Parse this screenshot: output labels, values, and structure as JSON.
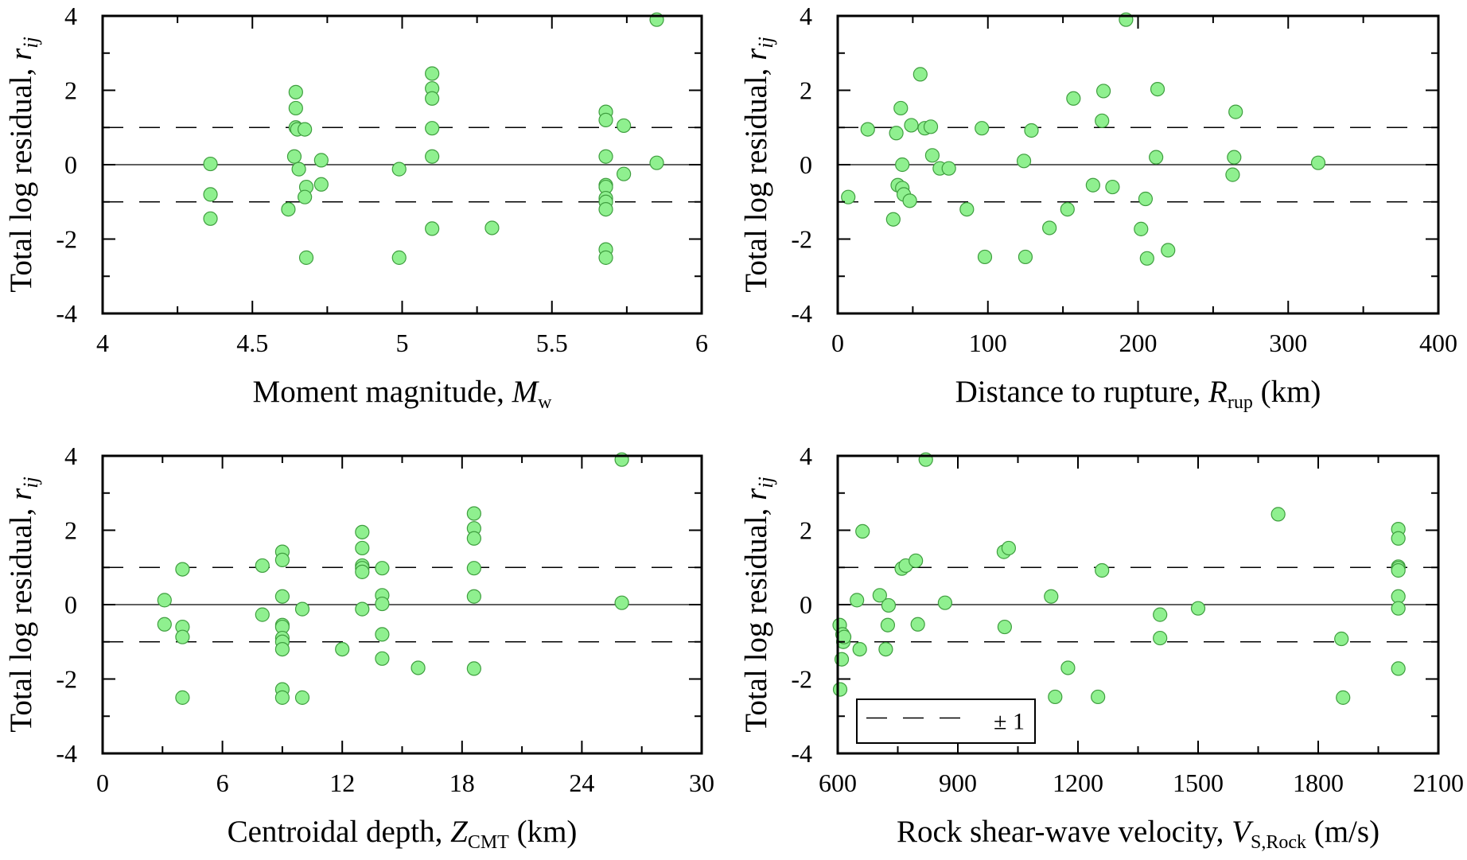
{
  "chart_data": [
    {
      "type": "scatter",
      "xlabel": "Moment magnitude, M_w",
      "xlabel_parts": {
        "text": "Moment magnitude, ",
        "var": "M",
        "sub": "w",
        "tail": ""
      },
      "ylabel": "Total log residual, r_ij",
      "ylabel_parts": {
        "text": "Total log residual, ",
        "var": "r",
        "sub": "ij"
      },
      "xlim": [
        4,
        6
      ],
      "ylim": [
        -4,
        4
      ],
      "xticks": [
        4,
        4.5,
        5,
        5.5,
        6
      ],
      "xtick_labels": [
        "4",
        "4.5",
        "5",
        "5.5",
        "6"
      ],
      "yticks": [
        -4,
        -2,
        0,
        2,
        4
      ],
      "ytick_labels": [
        "-4",
        "-2",
        "0",
        "2",
        "4"
      ],
      "xminor": [
        4.25,
        4.75,
        5.25,
        5.75
      ],
      "yminor": [
        -3,
        -1,
        1,
        3
      ],
      "reference_lines": [
        {
          "y": 0,
          "style": "solid"
        },
        {
          "y": 1,
          "style": "dashed"
        },
        {
          "y": -1,
          "style": "dashed"
        }
      ],
      "points": [
        [
          4.36,
          0.02
        ],
        [
          4.36,
          -0.8
        ],
        [
          4.36,
          -1.45
        ],
        [
          4.62,
          -1.2
        ],
        [
          4.64,
          0.22
        ],
        [
          4.645,
          1.95
        ],
        [
          4.645,
          1.52
        ],
        [
          4.645,
          1.0
        ],
        [
          4.65,
          0.95
        ],
        [
          4.655,
          -0.12
        ],
        [
          4.675,
          0.95
        ],
        [
          4.68,
          -0.6
        ],
        [
          4.675,
          -0.87
        ],
        [
          4.68,
          -2.5
        ],
        [
          4.73,
          0.12
        ],
        [
          4.73,
          -0.53
        ],
        [
          4.99,
          -0.12
        ],
        [
          4.99,
          -2.5
        ],
        [
          5.1,
          2.45
        ],
        [
          5.1,
          2.05
        ],
        [
          5.1,
          1.78
        ],
        [
          5.1,
          0.98
        ],
        [
          5.1,
          0.22
        ],
        [
          5.1,
          -1.72
        ],
        [
          5.3,
          -1.7
        ],
        [
          5.68,
          1.42
        ],
        [
          5.68,
          1.2
        ],
        [
          5.68,
          0.22
        ],
        [
          5.68,
          -0.55
        ],
        [
          5.68,
          -0.6
        ],
        [
          5.68,
          -0.9
        ],
        [
          5.68,
          -1.0
        ],
        [
          5.68,
          -1.2
        ],
        [
          5.68,
          -2.28
        ],
        [
          5.68,
          -2.5
        ],
        [
          5.74,
          1.05
        ],
        [
          5.74,
          -0.25
        ],
        [
          5.85,
          3.9
        ],
        [
          5.85,
          0.05
        ]
      ]
    },
    {
      "type": "scatter",
      "xlabel": "Distance to rupture, R_rup (km)",
      "xlabel_parts": {
        "text": "Distance to rupture, ",
        "var": "R",
        "sub": "rup",
        "tail": " (km)"
      },
      "ylabel": "Total log residual, r_ij",
      "ylabel_parts": {
        "text": "Total log residual, ",
        "var": "r",
        "sub": "ij"
      },
      "xlim": [
        0,
        400
      ],
      "ylim": [
        -4,
        4
      ],
      "xticks": [
        0,
        100,
        200,
        300,
        400
      ],
      "xtick_labels": [
        "0",
        "100",
        "200",
        "300",
        "400"
      ],
      "yticks": [
        -4,
        -2,
        0,
        2,
        4
      ],
      "ytick_labels": [
        "-4",
        "-2",
        "0",
        "2",
        "4"
      ],
      "xminor": [
        50,
        150,
        250,
        350
      ],
      "yminor": [
        -3,
        -1,
        1,
        3
      ],
      "reference_lines": [
        {
          "y": 0,
          "style": "solid"
        },
        {
          "y": 1,
          "style": "dashed"
        },
        {
          "y": -1,
          "style": "dashed"
        }
      ],
      "points": [
        [
          7,
          -0.87
        ],
        [
          20,
          0.95
        ],
        [
          37,
          -1.47
        ],
        [
          39,
          0.85
        ],
        [
          40,
          -0.55
        ],
        [
          42,
          1.52
        ],
        [
          43,
          -0.63
        ],
        [
          43,
          0.0
        ],
        [
          44,
          -0.8
        ],
        [
          48,
          -0.97
        ],
        [
          49,
          1.06
        ],
        [
          55,
          2.43
        ],
        [
          58,
          0.98
        ],
        [
          62,
          1.02
        ],
        [
          63,
          0.25
        ],
        [
          68,
          -0.1
        ],
        [
          74,
          -0.1
        ],
        [
          86,
          -1.2
        ],
        [
          96,
          0.98
        ],
        [
          98,
          -2.48
        ],
        [
          124,
          0.1
        ],
        [
          125,
          -2.48
        ],
        [
          129,
          0.92
        ],
        [
          141,
          -1.7
        ],
        [
          153,
          -1.2
        ],
        [
          157,
          1.78
        ],
        [
          170,
          -0.55
        ],
        [
          176,
          1.18
        ],
        [
          177,
          1.98
        ],
        [
          183,
          -0.6
        ],
        [
          192,
          3.9
        ],
        [
          202,
          -1.73
        ],
        [
          205,
          -0.92
        ],
        [
          206,
          -2.52
        ],
        [
          212,
          0.2
        ],
        [
          213,
          2.03
        ],
        [
          220,
          -2.3
        ],
        [
          263,
          -0.27
        ],
        [
          264,
          0.2
        ],
        [
          265,
          1.42
        ],
        [
          320,
          0.05
        ]
      ]
    },
    {
      "type": "scatter",
      "xlabel": "Centroidal depth, Z_CMT (km)",
      "xlabel_parts": {
        "text": "Centroidal depth, ",
        "var": "Z",
        "sub": "CMT",
        "tail": " (km)"
      },
      "ylabel": "Total log residual, r_ij",
      "ylabel_parts": {
        "text": "Total log residual, ",
        "var": "r",
        "sub": "ij"
      },
      "xlim": [
        0,
        30
      ],
      "ylim": [
        -4,
        4
      ],
      "xticks": [
        0,
        6,
        12,
        18,
        24,
        30
      ],
      "xtick_labels": [
        "0",
        "6",
        "12",
        "18",
        "24",
        "30"
      ],
      "yticks": [
        -4,
        -2,
        0,
        2,
        4
      ],
      "ytick_labels": [
        "-4",
        "-2",
        "0",
        "2",
        "4"
      ],
      "xminor": [
        3,
        9,
        15,
        21,
        27
      ],
      "yminor": [
        -3,
        -1,
        1,
        3
      ],
      "reference_lines": [
        {
          "y": 0,
          "style": "solid"
        },
        {
          "y": 1,
          "style": "dashed"
        },
        {
          "y": -1,
          "style": "dashed"
        }
      ],
      "points": [
        [
          3.1,
          0.12
        ],
        [
          3.1,
          -0.53
        ],
        [
          4.0,
          0.95
        ],
        [
          4.0,
          -0.6
        ],
        [
          4.0,
          -0.87
        ],
        [
          4.0,
          -2.5
        ],
        [
          8.0,
          1.05
        ],
        [
          8.0,
          -0.27
        ],
        [
          9.0,
          1.42
        ],
        [
          9.0,
          1.2
        ],
        [
          9.0,
          0.22
        ],
        [
          9.0,
          -0.55
        ],
        [
          9.0,
          -0.6
        ],
        [
          9.0,
          -0.9
        ],
        [
          9.0,
          -1.0
        ],
        [
          9.0,
          -1.2
        ],
        [
          9.0,
          -2.28
        ],
        [
          9.0,
          -2.5
        ],
        [
          10.0,
          -0.12
        ],
        [
          10.0,
          -2.5
        ],
        [
          12.0,
          -1.2
        ],
        [
          13.0,
          1.95
        ],
        [
          13.0,
          1.52
        ],
        [
          13.0,
          1.05
        ],
        [
          13.0,
          0.98
        ],
        [
          13.0,
          0.88
        ],
        [
          13.0,
          -0.12
        ],
        [
          14.0,
          0.98
        ],
        [
          14.0,
          0.25
        ],
        [
          14.0,
          0.02
        ],
        [
          14.0,
          -0.8
        ],
        [
          14.0,
          -1.45
        ],
        [
          15.8,
          -1.7
        ],
        [
          18.6,
          2.45
        ],
        [
          18.6,
          2.05
        ],
        [
          18.6,
          1.78
        ],
        [
          18.6,
          0.98
        ],
        [
          18.6,
          0.22
        ],
        [
          18.6,
          -1.72
        ],
        [
          26.0,
          3.9
        ],
        [
          26.0,
          0.05
        ]
      ]
    },
    {
      "type": "scatter",
      "xlabel": "Rock shear-wave velocity, V_S,Rock (m/s)",
      "xlabel_parts": {
        "text": "Rock shear-wave velocity, ",
        "var": "V",
        "sub": "S,Rock",
        "tail": " (m/s)"
      },
      "ylabel": "Total log residual, r_ij",
      "ylabel_parts": {
        "text": "Total log residual, ",
        "var": "r",
        "sub": "ij"
      },
      "xlim": [
        600,
        2100
      ],
      "ylim": [
        -4,
        4
      ],
      "xticks": [
        600,
        900,
        1200,
        1500,
        1800,
        2100
      ],
      "xtick_labels": [
        "600",
        "900",
        "1200",
        "1500",
        "1800",
        "2100"
      ],
      "yticks": [
        -4,
        -2,
        0,
        2,
        4
      ],
      "ytick_labels": [
        "-4",
        "-2",
        "0",
        "2",
        "4"
      ],
      "xminor": [
        750,
        1050,
        1350,
        1650,
        1950
      ],
      "yminor": [
        -3,
        -1,
        1,
        3
      ],
      "reference_lines": [
        {
          "y": 0,
          "style": "solid"
        },
        {
          "y": 1,
          "style": "dashed"
        },
        {
          "y": -1,
          "style": "dashed"
        }
      ],
      "legend": {
        "label": "± 1",
        "position": "bottom-left"
      },
      "points": [
        [
          605,
          -0.55
        ],
        [
          606,
          -2.28
        ],
        [
          610,
          -1.47
        ],
        [
          612,
          -0.8
        ],
        [
          614,
          -1.0
        ],
        [
          616,
          -0.87
        ],
        [
          648,
          0.12
        ],
        [
          655,
          -1.2
        ],
        [
          662,
          1.97
        ],
        [
          705,
          0.25
        ],
        [
          720,
          -1.2
        ],
        [
          725,
          -0.55
        ],
        [
          727,
          -0.02
        ],
        [
          760,
          0.97
        ],
        [
          770,
          1.05
        ],
        [
          795,
          1.18
        ],
        [
          800,
          -0.53
        ],
        [
          820,
          3.9
        ],
        [
          868,
          0.05
        ],
        [
          1015,
          1.42
        ],
        [
          1017,
          -0.6
        ],
        [
          1027,
          1.52
        ],
        [
          1133,
          0.22
        ],
        [
          1143,
          -2.48
        ],
        [
          1175,
          -1.7
        ],
        [
          1250,
          -2.48
        ],
        [
          1260,
          0.92
        ],
        [
          1405,
          -0.27
        ],
        [
          1405,
          -0.9
        ],
        [
          1500,
          -0.1
        ],
        [
          1700,
          2.43
        ],
        [
          1858,
          -0.92
        ],
        [
          1862,
          -2.5
        ],
        [
          2000,
          2.03
        ],
        [
          2000,
          1.78
        ],
        [
          2000,
          1.02
        ],
        [
          2000,
          0.98
        ],
        [
          2000,
          0.92
        ],
        [
          2000,
          0.22
        ],
        [
          2000,
          -0.1
        ],
        [
          2000,
          -1.72
        ]
      ]
    }
  ],
  "colors": {
    "point_fill": "#8ff08f",
    "point_stroke": "#3f9e3f",
    "axis": "#000000"
  }
}
